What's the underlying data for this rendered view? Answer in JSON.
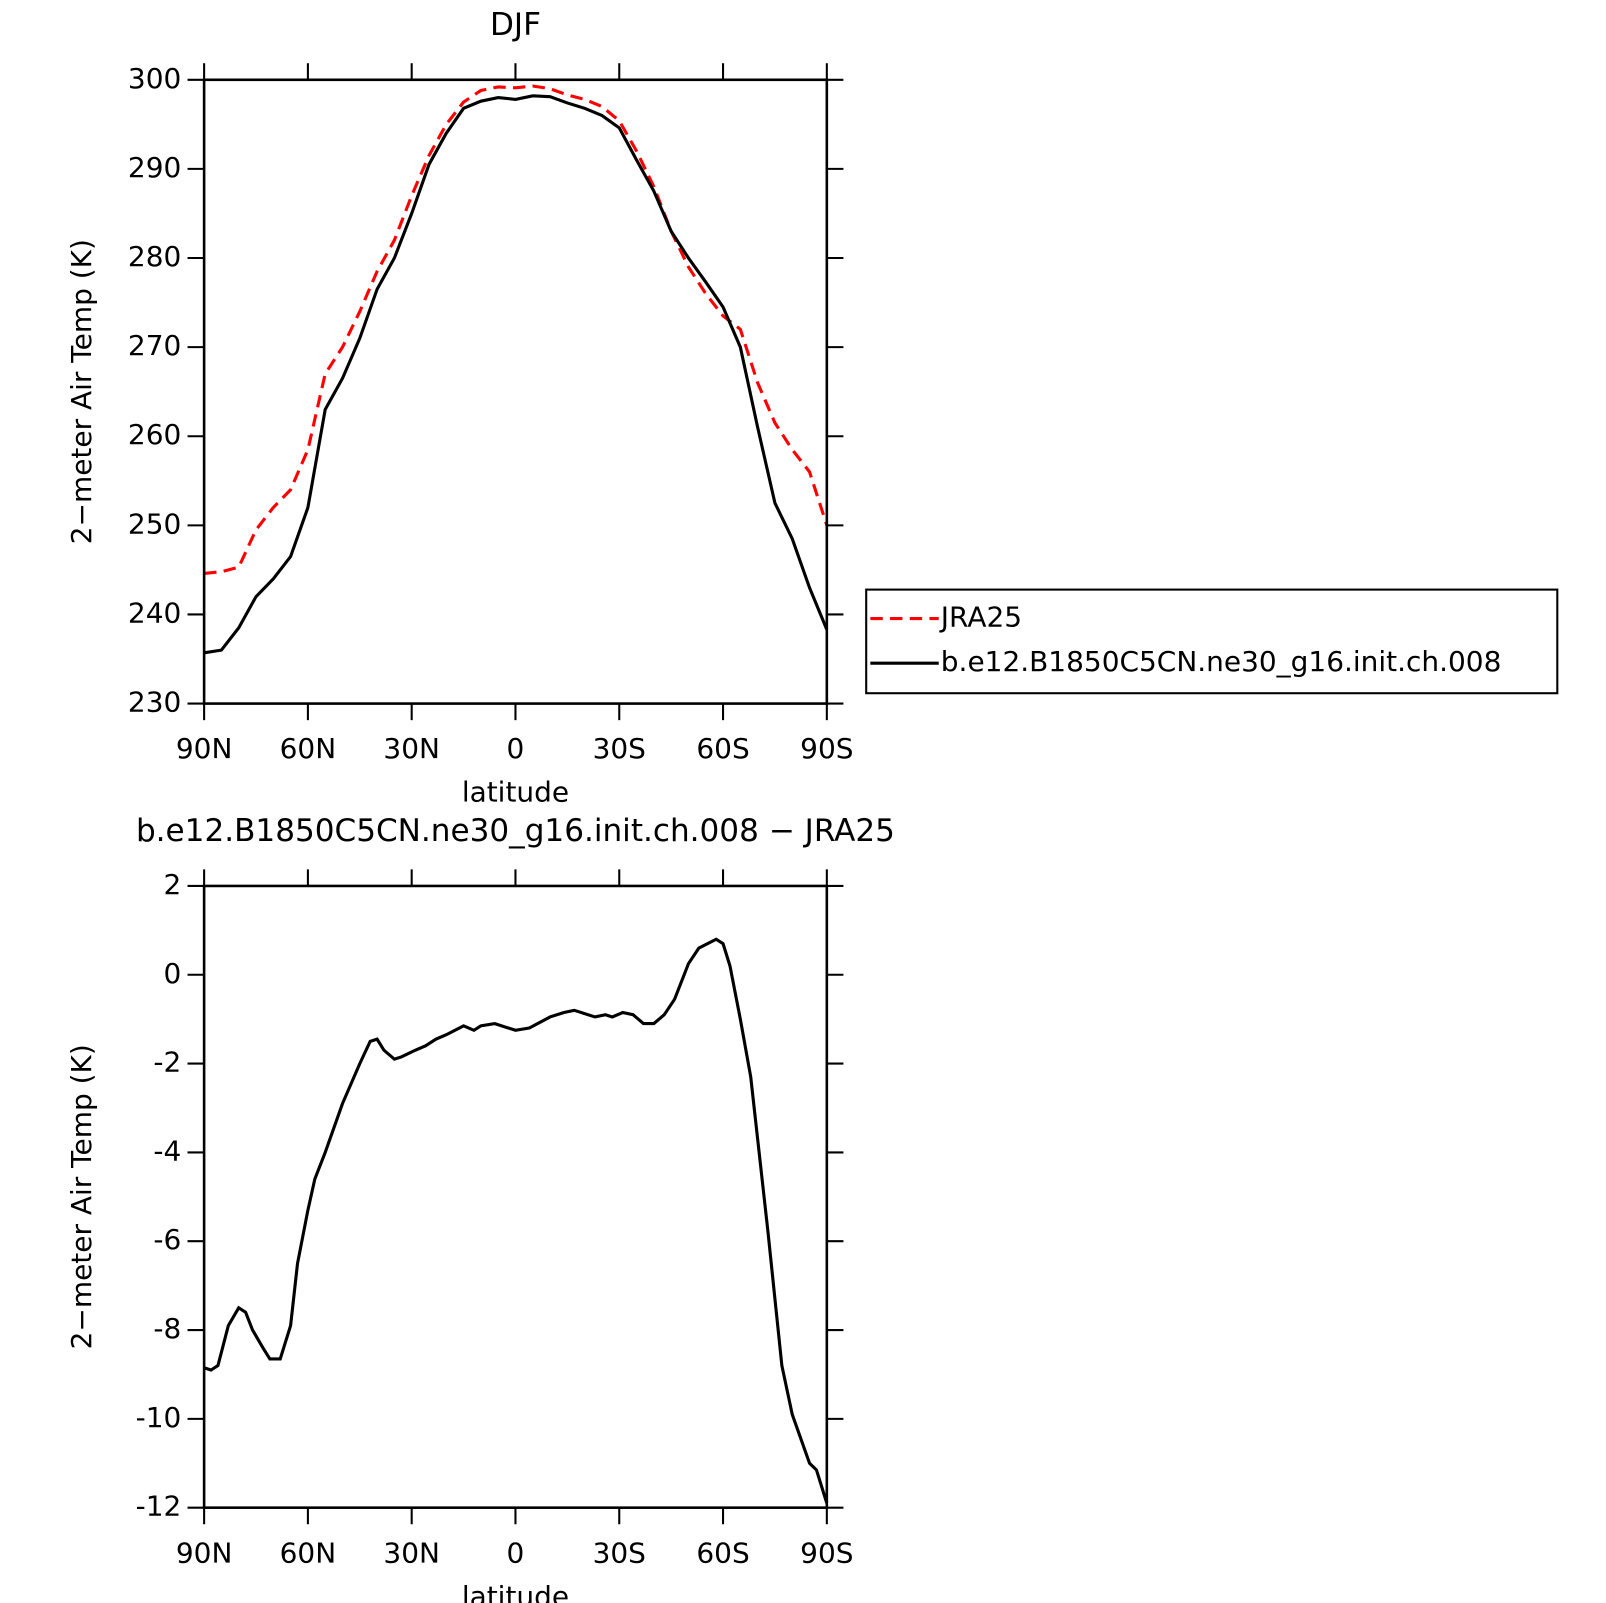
{
  "chart_data": [
    {
      "type": "line",
      "title": "DJF",
      "xlabel": "latitude",
      "ylabel": "2−meter Air Temp (K)",
      "xlim": [
        90,
        -90
      ],
      "xticks": [
        {
          "value": 90,
          "label": "90N"
        },
        {
          "value": 60,
          "label": "60N"
        },
        {
          "value": 30,
          "label": "30N"
        },
        0,
        {
          "value": -30,
          "label": "30S"
        },
        {
          "value": -60,
          "label": "60S"
        },
        {
          "value": -90,
          "label": "90S"
        }
      ],
      "ylim": [
        230,
        300
      ],
      "yticks": [
        230,
        240,
        250,
        260,
        270,
        280,
        290,
        300
      ],
      "legend": "right",
      "x": [
        90,
        85,
        80,
        75,
        70,
        65,
        60,
        55,
        50,
        45,
        40,
        35,
        30,
        25,
        20,
        15,
        10,
        5,
        0,
        -5,
        -10,
        -15,
        -20,
        -25,
        -30,
        -35,
        -40,
        -45,
        -50,
        -55,
        -60,
        -65,
        -70,
        -75,
        -80,
        -85,
        -90
      ],
      "series": [
        {
          "name": "JRA25",
          "color": "#ff0000",
          "linestyle": "dashed",
          "values": [
            244.6,
            244.8,
            245.3,
            249.5,
            252,
            254,
            258.5,
            267,
            270,
            274,
            278.5,
            282,
            287,
            291.5,
            295,
            297.5,
            298.8,
            299.2,
            299.1,
            299.3,
            299.0,
            298.3,
            297.8,
            297,
            295.4,
            292,
            288,
            283,
            279,
            276,
            273.5,
            272,
            266,
            261.5,
            258.5,
            256,
            250
          ]
        },
        {
          "name": "b.e12.B1850C5CN.ne30_g16.init.ch.008",
          "color": "#000000",
          "linestyle": "solid",
          "values": [
            235.7,
            236,
            238.5,
            242,
            244,
            246.5,
            252,
            263,
            266.5,
            271,
            276.5,
            280,
            285,
            290.5,
            294,
            296.8,
            297.6,
            298,
            297.8,
            298.2,
            298.1,
            297.4,
            296.8,
            296,
            294.6,
            291,
            287.5,
            283,
            280,
            277.3,
            274.5,
            270,
            261,
            252.5,
            248.5,
            243,
            238.3
          ]
        }
      ]
    },
    {
      "type": "line",
      "title": "b.e12.B1850C5CN.ne30_g16.init.ch.008 − JRA25",
      "xlabel": "latitude",
      "ylabel": "2−meter Air Temp (K)",
      "xlim": [
        90,
        -90
      ],
      "xticks": [
        {
          "value": 90,
          "label": "90N"
        },
        {
          "value": 60,
          "label": "60N"
        },
        {
          "value": 30,
          "label": "30N"
        },
        0,
        {
          "value": -30,
          "label": "30S"
        },
        {
          "value": -60,
          "label": "60S"
        },
        {
          "value": -90,
          "label": "90S"
        }
      ],
      "ylim": [
        -12,
        2
      ],
      "yticks": [
        -12,
        -10,
        -8,
        -6,
        -4,
        -2,
        0,
        2
      ],
      "x": [
        90,
        88,
        86,
        83,
        80,
        78,
        76,
        73,
        71,
        68,
        65,
        63,
        60,
        58,
        55,
        50,
        45,
        42,
        40,
        38,
        35,
        33,
        29,
        26,
        23,
        20,
        15,
        12,
        10,
        6,
        0,
        -4,
        -10,
        -14,
        -17,
        -23,
        -26,
        -28,
        -31,
        -34,
        -37,
        -40,
        -43,
        -46,
        -50,
        -53,
        -58,
        -60,
        -62,
        -65,
        -68,
        -73,
        -77,
        -80,
        -85,
        -87,
        -90
      ],
      "series": [
        {
          "color": "#000000",
          "linestyle": "solid",
          "values": [
            -8.85,
            -8.9,
            -8.8,
            -7.9,
            -7.5,
            -7.6,
            -8.0,
            -8.4,
            -8.65,
            -8.65,
            -7.9,
            -6.5,
            -5.3,
            -4.6,
            -4.0,
            -2.9,
            -2.0,
            -1.5,
            -1.45,
            -1.7,
            -1.9,
            -1.85,
            -1.7,
            -1.6,
            -1.45,
            -1.35,
            -1.15,
            -1.25,
            -1.15,
            -1.1,
            -1.25,
            -1.2,
            -0.95,
            -0.85,
            -0.8,
            -0.95,
            -0.9,
            -0.95,
            -0.85,
            -0.9,
            -1.1,
            -1.1,
            -0.9,
            -0.55,
            0.25,
            0.6,
            0.8,
            0.7,
            0.2,
            -1.0,
            -2.3,
            -5.8,
            -8.8,
            -9.9,
            -11.0,
            -11.15,
            -11.9
          ]
        }
      ]
    }
  ]
}
